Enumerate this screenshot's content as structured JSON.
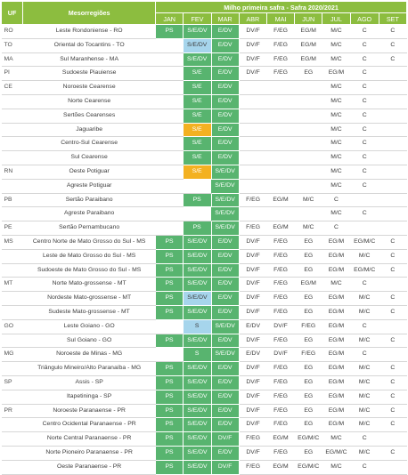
{
  "header": {
    "uf_label": "UF",
    "meso_label": "Mesorregiões",
    "title": "Milho primeira safra - Safra 2020/2021",
    "months": [
      "JAN",
      "FEV",
      "MAR",
      "ABR",
      "MAI",
      "JUN",
      "JUL",
      "AGO",
      "SET"
    ]
  },
  "rows": [
    {
      "uf": "RO",
      "meso": "Leste Rondoniense - RO",
      "cells": [
        [
          "PS",
          "g"
        ],
        [
          "S/E/DV",
          "g"
        ],
        [
          "E/DV",
          "g"
        ],
        [
          "DV/F",
          ""
        ],
        [
          "F/EG",
          ""
        ],
        [
          "EG/M",
          ""
        ],
        [
          "M/C",
          ""
        ],
        [
          "C",
          ""
        ],
        [
          "C",
          ""
        ]
      ]
    },
    {
      "uf": "TO",
      "meso": "Oriental do Tocantins - TO",
      "cells": [
        [
          "",
          "w"
        ],
        [
          "S/E/DV",
          "b"
        ],
        [
          "E/DV",
          "g"
        ],
        [
          "DV/F",
          ""
        ],
        [
          "F/EG",
          ""
        ],
        [
          "EG/M",
          ""
        ],
        [
          "M/C",
          ""
        ],
        [
          "C",
          ""
        ],
        [
          "C",
          ""
        ]
      ]
    },
    {
      "uf": "MA",
      "meso": "Sul Maranhense - MA",
      "cells": [
        [
          "",
          "w"
        ],
        [
          "S/E/DV",
          "g"
        ],
        [
          "E/DV",
          "g"
        ],
        [
          "DV/F",
          ""
        ],
        [
          "F/EG",
          ""
        ],
        [
          "EG/M",
          ""
        ],
        [
          "M/C",
          ""
        ],
        [
          "C",
          ""
        ],
        [
          "C",
          ""
        ]
      ]
    },
    {
      "uf": "PI",
      "meso": "Sudoeste Piauiense",
      "cells": [
        [
          "",
          "w"
        ],
        [
          "S/E",
          "g"
        ],
        [
          "E/DV",
          "g"
        ],
        [
          "DV/F",
          ""
        ],
        [
          "F/EG",
          ""
        ],
        [
          "EG",
          ""
        ],
        [
          "EG/M",
          ""
        ],
        [
          "C",
          ""
        ],
        [
          "",
          ""
        ]
      ]
    },
    {
      "uf": "CE",
      "meso": "Noroeste Cearense",
      "cells": [
        [
          "",
          "w"
        ],
        [
          "S/E",
          "g"
        ],
        [
          "E/DV",
          "g"
        ],
        [
          "",
          ""
        ],
        [
          "",
          ""
        ],
        [
          "",
          ""
        ],
        [
          "M/C",
          ""
        ],
        [
          "C",
          ""
        ],
        [
          "",
          ""
        ]
      ]
    },
    {
      "uf": "",
      "meso": "Norte Cearense",
      "cells": [
        [
          "",
          "w"
        ],
        [
          "S/E",
          "g"
        ],
        [
          "E/DV",
          "g"
        ],
        [
          "",
          ""
        ],
        [
          "",
          ""
        ],
        [
          "",
          ""
        ],
        [
          "M/C",
          ""
        ],
        [
          "C",
          ""
        ],
        [
          "",
          ""
        ]
      ]
    },
    {
      "uf": "",
      "meso": "Sertões Cearenses",
      "cells": [
        [
          "",
          "w"
        ],
        [
          "S/E",
          "g"
        ],
        [
          "E/DV",
          "g"
        ],
        [
          "",
          ""
        ],
        [
          "",
          ""
        ],
        [
          "",
          ""
        ],
        [
          "M/C",
          ""
        ],
        [
          "C",
          ""
        ],
        [
          "",
          ""
        ]
      ]
    },
    {
      "uf": "",
      "meso": "Jaguaribe",
      "cells": [
        [
          "",
          "w"
        ],
        [
          "S/E",
          "y"
        ],
        [
          "E/DV",
          "g"
        ],
        [
          "",
          ""
        ],
        [
          "",
          ""
        ],
        [
          "",
          ""
        ],
        [
          "M/C",
          ""
        ],
        [
          "C",
          ""
        ],
        [
          "",
          ""
        ]
      ]
    },
    {
      "uf": "",
      "meso": "Centro-Sul Cearense",
      "cells": [
        [
          "",
          "w"
        ],
        [
          "S/E",
          "g"
        ],
        [
          "E/DV",
          "g"
        ],
        [
          "",
          ""
        ],
        [
          "",
          ""
        ],
        [
          "",
          ""
        ],
        [
          "M/C",
          ""
        ],
        [
          "C",
          ""
        ],
        [
          "",
          ""
        ]
      ]
    },
    {
      "uf": "",
      "meso": "Sul Cearense",
      "cells": [
        [
          "",
          "w"
        ],
        [
          "S/E",
          "g"
        ],
        [
          "E/DV",
          "g"
        ],
        [
          "",
          ""
        ],
        [
          "",
          ""
        ],
        [
          "",
          ""
        ],
        [
          "M/C",
          ""
        ],
        [
          "C",
          ""
        ],
        [
          "",
          ""
        ]
      ]
    },
    {
      "uf": "RN",
      "meso": "Oeste Potiguar",
      "cells": [
        [
          "",
          "w"
        ],
        [
          "S/E",
          "y"
        ],
        [
          "S/E/DV",
          "g"
        ],
        [
          "",
          ""
        ],
        [
          "",
          ""
        ],
        [
          "",
          ""
        ],
        [
          "M/C",
          ""
        ],
        [
          "C",
          ""
        ],
        [
          "",
          ""
        ]
      ]
    },
    {
      "uf": "",
      "meso": "Agreste Potiguar",
      "cells": [
        [
          "",
          "w"
        ],
        [
          "",
          "w"
        ],
        [
          "S/E/DV",
          "g"
        ],
        [
          "",
          ""
        ],
        [
          "",
          ""
        ],
        [
          "",
          ""
        ],
        [
          "M/C",
          ""
        ],
        [
          "C",
          ""
        ],
        [
          "",
          ""
        ]
      ]
    },
    {
      "uf": "PB",
      "meso": "Sertão Paraibano",
      "cells": [
        [
          "",
          "w"
        ],
        [
          "PS",
          "g"
        ],
        [
          "S/E/DV",
          "g"
        ],
        [
          "F/EG",
          ""
        ],
        [
          "EG/M",
          ""
        ],
        [
          "M/C",
          ""
        ],
        [
          "C",
          ""
        ],
        [
          "",
          ""
        ],
        [
          "",
          ""
        ]
      ]
    },
    {
      "uf": "",
      "meso": "Agreste Paraibano",
      "cells": [
        [
          "",
          "w"
        ],
        [
          "",
          "w"
        ],
        [
          "S/E/DV",
          "g"
        ],
        [
          "",
          ""
        ],
        [
          "",
          ""
        ],
        [
          "",
          ""
        ],
        [
          "M/C",
          ""
        ],
        [
          "C",
          ""
        ],
        [
          "",
          ""
        ]
      ]
    },
    {
      "uf": "PE",
      "meso": "Sertão Pernambucano",
      "cells": [
        [
          "",
          "w"
        ],
        [
          "PS",
          "g"
        ],
        [
          "S/E/DV",
          "g"
        ],
        [
          "F/EG",
          ""
        ],
        [
          "EG/M",
          ""
        ],
        [
          "M/C",
          ""
        ],
        [
          "C",
          ""
        ],
        [
          "",
          ""
        ],
        [
          "",
          ""
        ]
      ]
    },
    {
      "uf": "MS",
      "meso": "Centro Norte de Mato Grosso do Sul - MS",
      "cells": [
        [
          "PS",
          "g"
        ],
        [
          "S/E/DV",
          "g"
        ],
        [
          "E/DV",
          "g"
        ],
        [
          "DV/F",
          ""
        ],
        [
          "F/EG",
          ""
        ],
        [
          "EG",
          ""
        ],
        [
          "EG/M",
          ""
        ],
        [
          "EG/M/C",
          ""
        ],
        [
          "C",
          ""
        ]
      ]
    },
    {
      "uf": "",
      "meso": "Leste de Mato Grosso do Sul - MS",
      "cells": [
        [
          "PS",
          "g"
        ],
        [
          "S/E/DV",
          "g"
        ],
        [
          "E/DV",
          "g"
        ],
        [
          "DV/F",
          ""
        ],
        [
          "F/EG",
          ""
        ],
        [
          "EG",
          ""
        ],
        [
          "EG/M",
          ""
        ],
        [
          "M/C",
          ""
        ],
        [
          "C",
          ""
        ]
      ]
    },
    {
      "uf": "",
      "meso": "Sudoeste de Mato Grosso do Sul - MS",
      "cells": [
        [
          "PS",
          "g"
        ],
        [
          "S/E/DV",
          "g"
        ],
        [
          "E/DV",
          "g"
        ],
        [
          "DV/F",
          ""
        ],
        [
          "F/EG",
          ""
        ],
        [
          "EG",
          ""
        ],
        [
          "EG/M",
          ""
        ],
        [
          "EG/M/C",
          ""
        ],
        [
          "C",
          ""
        ]
      ]
    },
    {
      "uf": "MT",
      "meso": "Norte Mato-grossense - MT",
      "cells": [
        [
          "PS",
          "g"
        ],
        [
          "S/E/DV",
          "g"
        ],
        [
          "E/DV",
          "g"
        ],
        [
          "DV/F",
          ""
        ],
        [
          "F/EG",
          ""
        ],
        [
          "EG/M",
          ""
        ],
        [
          "M/C",
          ""
        ],
        [
          "C",
          ""
        ],
        [
          "",
          ""
        ]
      ]
    },
    {
      "uf": "",
      "meso": "Nordeste Mato-grossense - MT",
      "cells": [
        [
          "PS",
          "g"
        ],
        [
          "S/E/DV",
          "b"
        ],
        [
          "E/DV",
          "g"
        ],
        [
          "DV/F",
          ""
        ],
        [
          "F/EG",
          ""
        ],
        [
          "EG",
          ""
        ],
        [
          "EG/M",
          ""
        ],
        [
          "M/C",
          ""
        ],
        [
          "C",
          ""
        ]
      ]
    },
    {
      "uf": "",
      "meso": "Sudeste Mato-grossense - MT",
      "cells": [
        [
          "PS",
          "g"
        ],
        [
          "S/E/DV",
          "g"
        ],
        [
          "E/DV",
          "g"
        ],
        [
          "DV/F",
          ""
        ],
        [
          "F/EG",
          ""
        ],
        [
          "EG",
          ""
        ],
        [
          "EG/M",
          ""
        ],
        [
          "M/C",
          ""
        ],
        [
          "C",
          ""
        ]
      ]
    },
    {
      "uf": "GO",
      "meso": "Leste Goiano - GO",
      "cells": [
        [
          "",
          "w"
        ],
        [
          "S",
          "b"
        ],
        [
          "S/E/DV",
          "g"
        ],
        [
          "E/DV",
          ""
        ],
        [
          "DV/F",
          ""
        ],
        [
          "F/EG",
          ""
        ],
        [
          "EG/M",
          ""
        ],
        [
          "C",
          ""
        ],
        [
          "",
          ""
        ]
      ]
    },
    {
      "uf": "",
      "meso": "Sul Goiano - GO",
      "cells": [
        [
          "PS",
          "g"
        ],
        [
          "S/E/DV",
          "g"
        ],
        [
          "E/DV",
          "g"
        ],
        [
          "DV/F",
          ""
        ],
        [
          "F/EG",
          ""
        ],
        [
          "EG",
          ""
        ],
        [
          "EG/M",
          ""
        ],
        [
          "M/C",
          ""
        ],
        [
          "C",
          ""
        ]
      ]
    },
    {
      "uf": "MG",
      "meso": "Noroeste de Minas - MG",
      "cells": [
        [
          "",
          "w"
        ],
        [
          "S",
          "g"
        ],
        [
          "S/E/DV",
          "g"
        ],
        [
          "E/DV",
          ""
        ],
        [
          "DV/F",
          ""
        ],
        [
          "F/EG",
          ""
        ],
        [
          "EG/M",
          ""
        ],
        [
          "C",
          ""
        ],
        [
          "",
          ""
        ]
      ]
    },
    {
      "uf": "",
      "meso": "Triângulo Mineiro/Alto Paranaíba - MG",
      "cells": [
        [
          "PS",
          "g"
        ],
        [
          "S/E/DV",
          "g"
        ],
        [
          "E/DV",
          "g"
        ],
        [
          "DV/F",
          ""
        ],
        [
          "F/EG",
          ""
        ],
        [
          "EG",
          ""
        ],
        [
          "EG/M",
          ""
        ],
        [
          "M/C",
          ""
        ],
        [
          "C",
          ""
        ]
      ]
    },
    {
      "uf": "SP",
      "meso": "Assis - SP",
      "cells": [
        [
          "PS",
          "g"
        ],
        [
          "S/E/DV",
          "g"
        ],
        [
          "E/DV",
          "g"
        ],
        [
          "DV/F",
          ""
        ],
        [
          "F/EG",
          ""
        ],
        [
          "EG",
          ""
        ],
        [
          "EG/M",
          ""
        ],
        [
          "M/C",
          ""
        ],
        [
          "C",
          ""
        ]
      ]
    },
    {
      "uf": "",
      "meso": "Itapetininga - SP",
      "cells": [
        [
          "PS",
          "g"
        ],
        [
          "S/E/DV",
          "g"
        ],
        [
          "E/DV",
          "g"
        ],
        [
          "DV/F",
          ""
        ],
        [
          "F/EG",
          ""
        ],
        [
          "EG",
          ""
        ],
        [
          "EG/M",
          ""
        ],
        [
          "M/C",
          ""
        ],
        [
          "C",
          ""
        ]
      ]
    },
    {
      "uf": "PR",
      "meso": "Noroeste Paranaense - PR",
      "cells": [
        [
          "PS",
          "g"
        ],
        [
          "S/E/DV",
          "g"
        ],
        [
          "E/DV",
          "g"
        ],
        [
          "DV/F",
          ""
        ],
        [
          "F/EG",
          ""
        ],
        [
          "EG",
          ""
        ],
        [
          "EG/M",
          ""
        ],
        [
          "M/C",
          ""
        ],
        [
          "C",
          ""
        ]
      ]
    },
    {
      "uf": "",
      "meso": "Centro Ocidental Paranaense - PR",
      "cells": [
        [
          "PS",
          "g"
        ],
        [
          "S/E/DV",
          "g"
        ],
        [
          "E/DV",
          "g"
        ],
        [
          "DV/F",
          ""
        ],
        [
          "F/EG",
          ""
        ],
        [
          "EG",
          ""
        ],
        [
          "EG/M",
          ""
        ],
        [
          "M/C",
          ""
        ],
        [
          "C",
          ""
        ]
      ]
    },
    {
      "uf": "",
      "meso": "Norte Central Paranaense - PR",
      "cells": [
        [
          "PS",
          "g"
        ],
        [
          "S/E/DV",
          "g"
        ],
        [
          "DV/F",
          "g"
        ],
        [
          "F/EG",
          ""
        ],
        [
          "EG/M",
          ""
        ],
        [
          "EG/M/C",
          ""
        ],
        [
          "M/C",
          ""
        ],
        [
          "C",
          ""
        ],
        [
          "",
          ""
        ]
      ]
    },
    {
      "uf": "",
      "meso": "Norte Pioneiro Paranaense - PR",
      "cells": [
        [
          "PS",
          "g"
        ],
        [
          "S/E/DV",
          "g"
        ],
        [
          "E/DV",
          "g"
        ],
        [
          "DV/F",
          ""
        ],
        [
          "F/EG",
          ""
        ],
        [
          "EG",
          ""
        ],
        [
          "EG/M/C",
          ""
        ],
        [
          "M/C",
          ""
        ],
        [
          "C",
          ""
        ]
      ]
    },
    {
      "uf": "",
      "meso": "Oeste Paranaense - PR",
      "cells": [
        [
          "PS",
          "g"
        ],
        [
          "S/E/DV",
          "g"
        ],
        [
          "DV/F",
          "g"
        ],
        [
          "F/EG",
          ""
        ],
        [
          "EG/M",
          ""
        ],
        [
          "EG/M/C",
          ""
        ],
        [
          "M/C",
          ""
        ],
        [
          "C",
          ""
        ],
        [
          "",
          ""
        ]
      ]
    }
  ],
  "colors": {
    "header_green": "#8cbd3f",
    "cell_green": "#58b46f",
    "cell_blue": "#a6d5ec",
    "cell_yellow": "#f3b121"
  }
}
